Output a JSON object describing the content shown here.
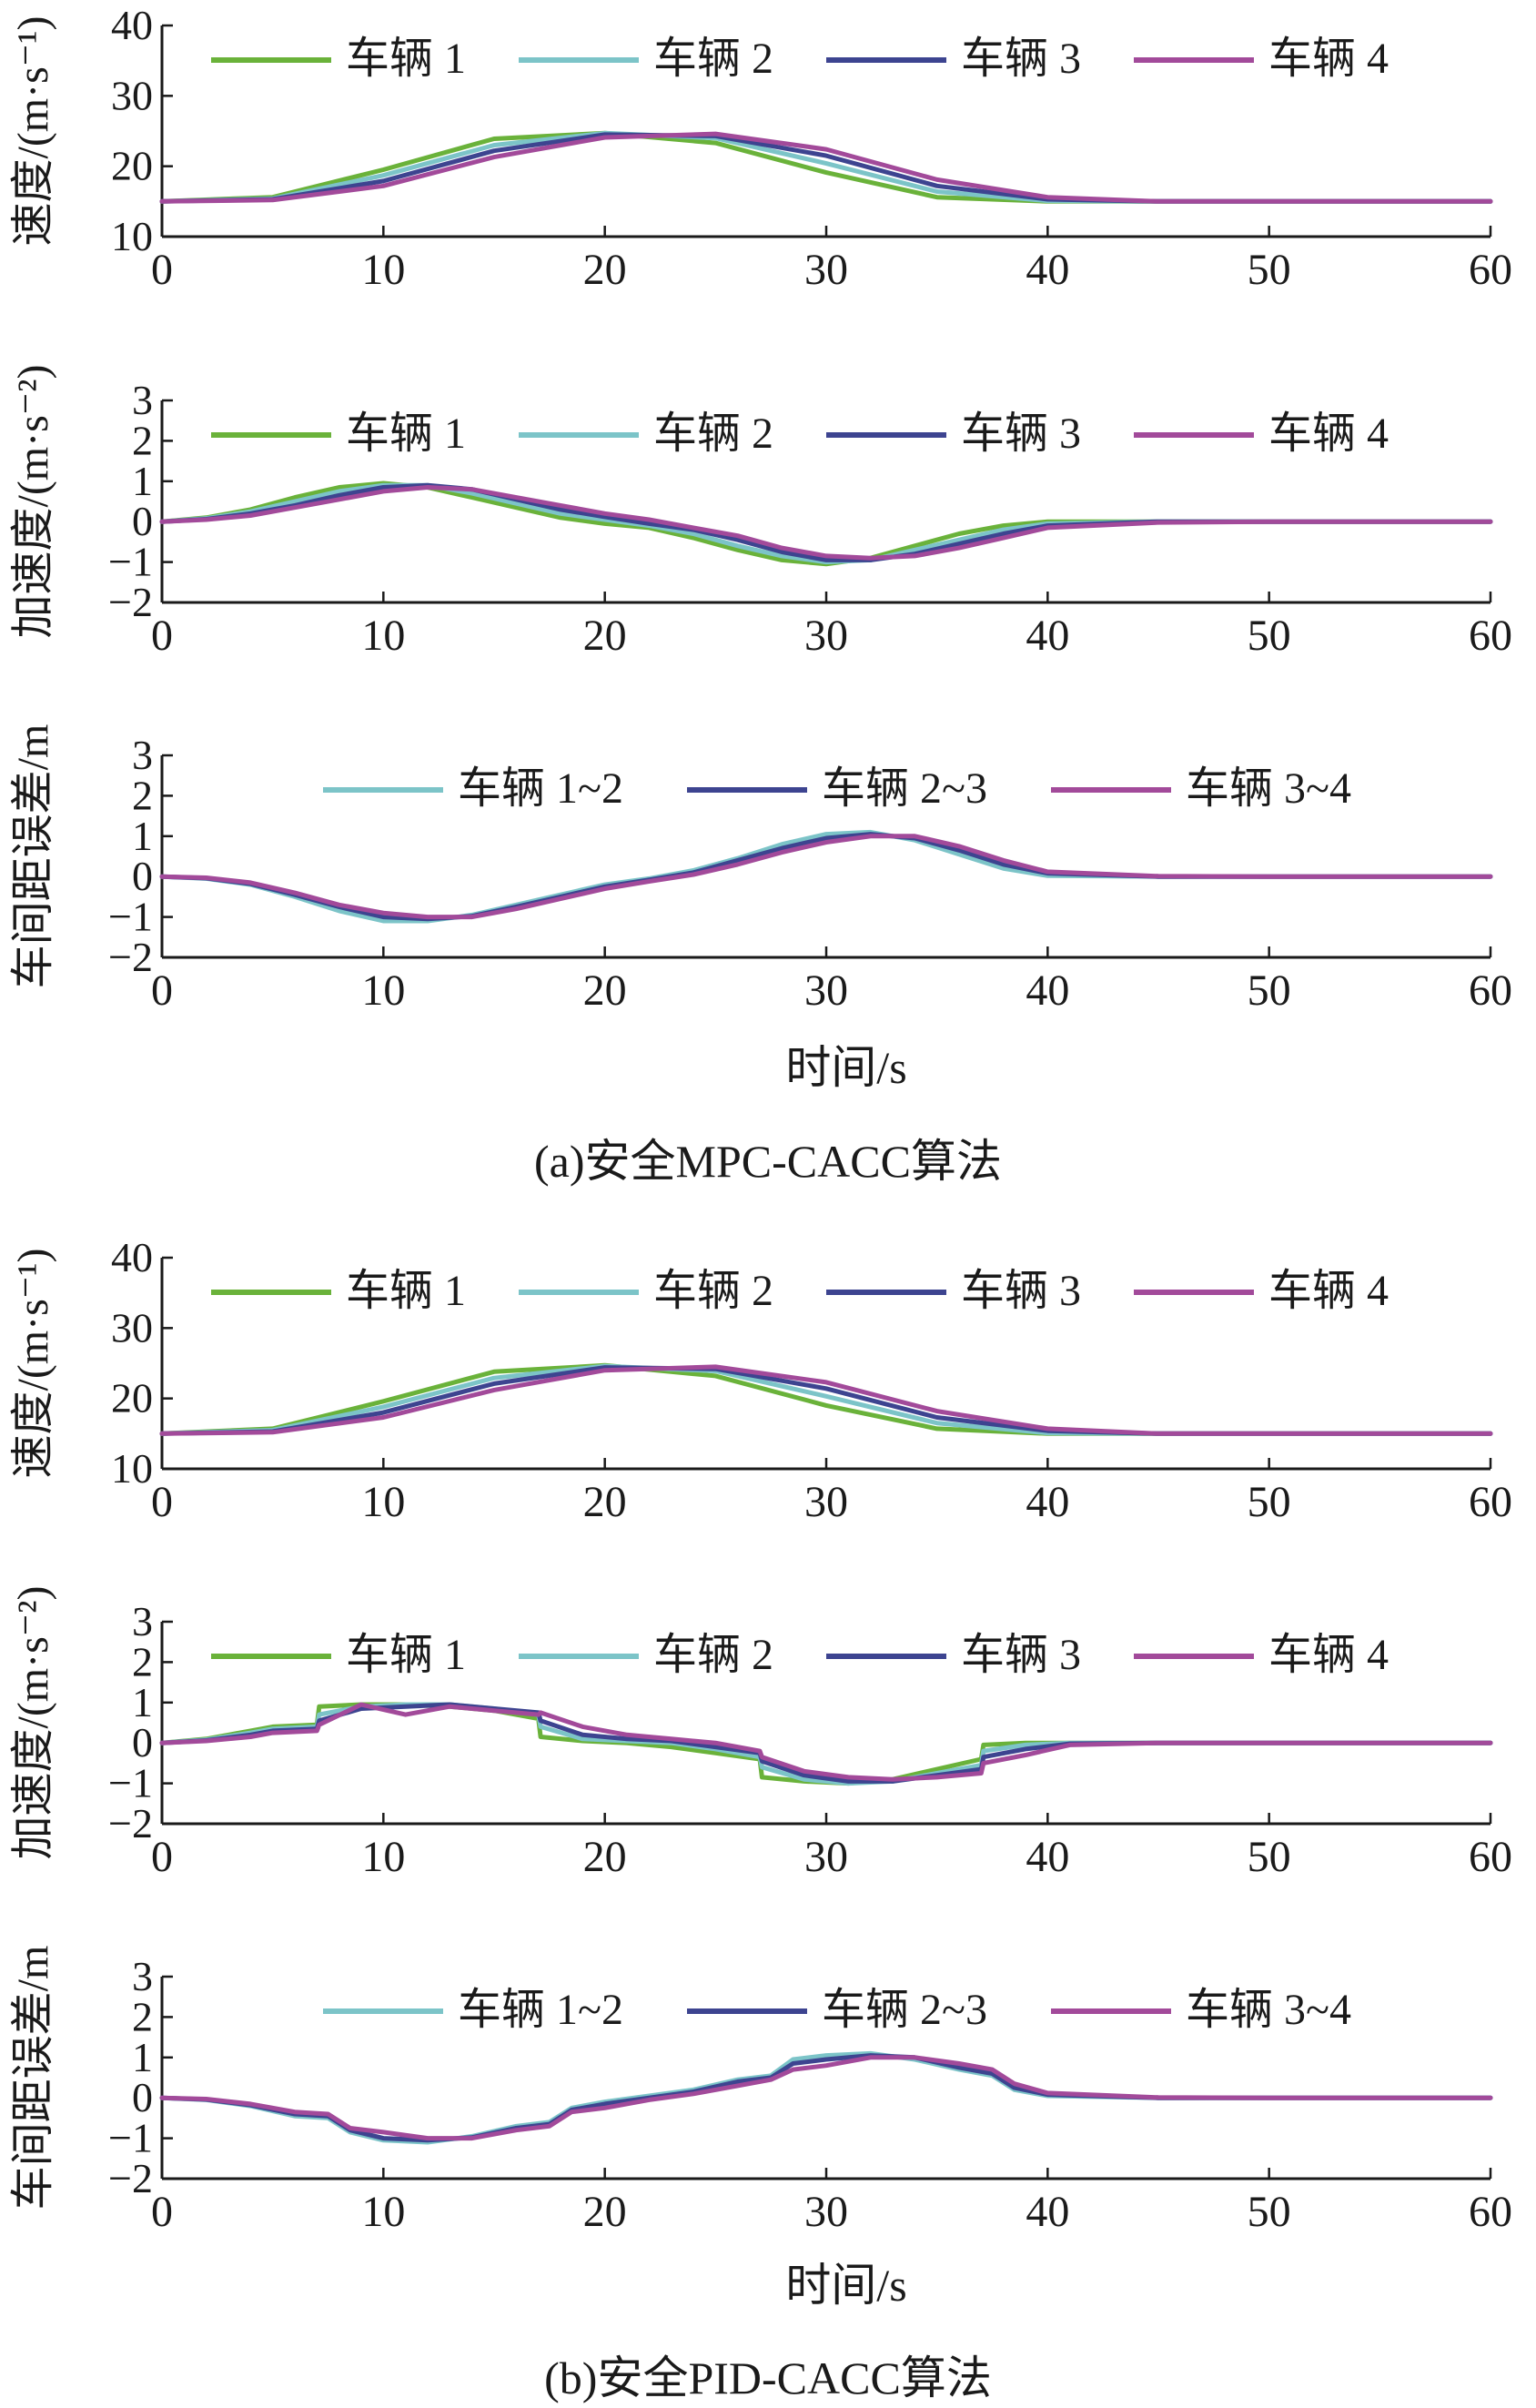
{
  "figure": {
    "panel_a_caption": "(a)安全MPC-CACC算法",
    "panel_b_caption": "(b)安全PID-CACC算法"
  },
  "colors": {
    "vehicle1": "#6ab23a",
    "vehicle2": "#7cc4c8",
    "vehicle3": "#3d4490",
    "vehicle4": "#a24a9a",
    "axis": "#1a1a1a"
  },
  "chart_data": [
    {
      "type": "line",
      "panel": "a",
      "title": "",
      "xlabel": "",
      "ylabel": "速度/(m·s⁻¹)",
      "xlim": [
        0,
        60
      ],
      "ylim": [
        10,
        40
      ],
      "xticks": [
        0,
        10,
        20,
        30,
        40,
        50,
        60
      ],
      "yticks": [
        10,
        20,
        30,
        40
      ],
      "grid": false,
      "legend": "top",
      "x": [
        0,
        5,
        10,
        15,
        20,
        25,
        30,
        35,
        40,
        45,
        50,
        55,
        60
      ],
      "series": [
        {
          "name": "车辆 1",
          "values": [
            15,
            15.6,
            19.5,
            23.9,
            24.7,
            23.3,
            19.1,
            15.6,
            15,
            15,
            15,
            15,
            15
          ]
        },
        {
          "name": "车辆 2",
          "values": [
            15,
            15.4,
            18.7,
            23.0,
            24.7,
            24.0,
            20.4,
            16.4,
            15.1,
            15,
            15,
            15,
            15
          ]
        },
        {
          "name": "车辆 3",
          "values": [
            15,
            15.3,
            17.9,
            22.2,
            24.5,
            24.3,
            21.5,
            17.2,
            15.3,
            15,
            15,
            15,
            15
          ]
        },
        {
          "name": "车辆 4",
          "values": [
            15,
            15.2,
            17.2,
            21.3,
            24.1,
            24.6,
            22.4,
            18.1,
            15.6,
            15,
            15,
            15,
            15
          ]
        }
      ]
    },
    {
      "type": "line",
      "panel": "a",
      "title": "",
      "xlabel": "",
      "ylabel": "加速度/(m·s⁻²)",
      "xlim": [
        0,
        60
      ],
      "ylim": [
        -2,
        3
      ],
      "xticks": [
        0,
        10,
        20,
        30,
        40,
        50,
        60
      ],
      "yticks": [
        -2,
        -1,
        0,
        1,
        2,
        3
      ],
      "grid": false,
      "legend": "top",
      "x": [
        0,
        2,
        4,
        6,
        8,
        10,
        12,
        14,
        16,
        18,
        20,
        22,
        24,
        26,
        28,
        30,
        32,
        34,
        36,
        38,
        40,
        45,
        50,
        55,
        60
      ],
      "series": [
        {
          "name": "车辆 1",
          "values": [
            0,
            0.1,
            0.3,
            0.6,
            0.85,
            0.95,
            0.85,
            0.6,
            0.35,
            0.1,
            -0.05,
            -0.15,
            -0.4,
            -0.7,
            -0.95,
            -1.05,
            -0.9,
            -0.6,
            -0.3,
            -0.1,
            0,
            0,
            0,
            0,
            0
          ]
        },
        {
          "name": "车辆 2",
          "values": [
            0,
            0.08,
            0.25,
            0.5,
            0.75,
            0.9,
            0.9,
            0.7,
            0.45,
            0.2,
            0.05,
            -0.1,
            -0.3,
            -0.6,
            -0.85,
            -1.0,
            -0.95,
            -0.7,
            -0.45,
            -0.2,
            -0.05,
            0,
            0,
            0,
            0
          ]
        },
        {
          "name": "车辆 3",
          "values": [
            0,
            0.06,
            0.2,
            0.4,
            0.65,
            0.85,
            0.9,
            0.8,
            0.55,
            0.3,
            0.12,
            -0.05,
            -0.2,
            -0.45,
            -0.75,
            -0.95,
            -0.95,
            -0.8,
            -0.55,
            -0.3,
            -0.1,
            0,
            0,
            0,
            0
          ]
        },
        {
          "name": "车辆 4",
          "values": [
            0,
            0.05,
            0.15,
            0.35,
            0.55,
            0.75,
            0.85,
            0.8,
            0.6,
            0.4,
            0.2,
            0.05,
            -0.15,
            -0.35,
            -0.65,
            -0.85,
            -0.9,
            -0.85,
            -0.65,
            -0.4,
            -0.15,
            -0.02,
            0,
            0,
            0
          ]
        }
      ]
    },
    {
      "type": "line",
      "panel": "a",
      "title": "",
      "xlabel": "时间/s",
      "ylabel": "车间距误差/m",
      "xlim": [
        0,
        60
      ],
      "ylim": [
        -2,
        3
      ],
      "xticks": [
        0,
        10,
        20,
        30,
        40,
        50,
        60
      ],
      "yticks": [
        -2,
        -1,
        0,
        1,
        2,
        3
      ],
      "grid": false,
      "legend": "top",
      "x": [
        0,
        2,
        4,
        6,
        8,
        10,
        12,
        14,
        16,
        18,
        20,
        22,
        24,
        26,
        28,
        30,
        32,
        34,
        36,
        38,
        40,
        45,
        50,
        55,
        60
      ],
      "series": [
        {
          "name": "车辆 1~2",
          "values": [
            0,
            -0.05,
            -0.2,
            -0.5,
            -0.85,
            -1.1,
            -1.1,
            -0.95,
            -0.7,
            -0.45,
            -0.2,
            -0.05,
            0.15,
            0.45,
            0.8,
            1.05,
            1.1,
            0.9,
            0.55,
            0.2,
            0.02,
            0,
            0,
            0,
            0
          ]
        },
        {
          "name": "车辆 2~3",
          "values": [
            0,
            -0.04,
            -0.18,
            -0.45,
            -0.75,
            -1.0,
            -1.05,
            -0.98,
            -0.75,
            -0.5,
            -0.25,
            -0.08,
            0.1,
            0.4,
            0.7,
            0.95,
            1.05,
            0.95,
            0.65,
            0.3,
            0.08,
            0,
            0,
            0,
            0
          ]
        },
        {
          "name": "车辆 3~4",
          "values": [
            0,
            -0.03,
            -0.15,
            -0.4,
            -0.7,
            -0.9,
            -1.0,
            -1.0,
            -0.8,
            -0.55,
            -0.3,
            -0.12,
            0.05,
            0.3,
            0.6,
            0.85,
            1.0,
            1.0,
            0.75,
            0.4,
            0.12,
            0.01,
            0,
            0,
            0
          ]
        }
      ]
    },
    {
      "type": "line",
      "panel": "b",
      "title": "",
      "xlabel": "",
      "ylabel": "速度/(m·s⁻¹)",
      "xlim": [
        0,
        60
      ],
      "ylim": [
        10,
        40
      ],
      "xticks": [
        0,
        10,
        20,
        30,
        40,
        50,
        60
      ],
      "yticks": [
        10,
        20,
        30,
        40
      ],
      "grid": false,
      "legend": "top",
      "x": [
        0,
        5,
        10,
        15,
        20,
        25,
        30,
        35,
        40,
        45,
        50,
        55,
        60
      ],
      "series": [
        {
          "name": "车辆 1",
          "values": [
            15,
            15.7,
            19.6,
            23.8,
            24.7,
            23.2,
            19.0,
            15.7,
            15,
            15,
            15,
            15,
            15
          ]
        },
        {
          "name": "车辆 2",
          "values": [
            15,
            15.5,
            18.8,
            22.9,
            24.6,
            23.9,
            20.3,
            16.5,
            15.1,
            15,
            15,
            15,
            15
          ]
        },
        {
          "name": "车辆 3",
          "values": [
            15,
            15.3,
            18.0,
            22.1,
            24.4,
            24.2,
            21.4,
            17.3,
            15.4,
            15,
            15,
            15,
            15
          ]
        },
        {
          "name": "车辆 4",
          "values": [
            15,
            15.2,
            17.3,
            21.2,
            24.0,
            24.5,
            22.3,
            18.2,
            15.7,
            15,
            15,
            15,
            15
          ]
        }
      ]
    },
    {
      "type": "line",
      "panel": "b",
      "title": "",
      "xlabel": "",
      "ylabel": "加速度/(m·s⁻²)",
      "xlim": [
        0,
        60
      ],
      "ylim": [
        -2,
        3
      ],
      "xticks": [
        0,
        10,
        20,
        30,
        40,
        50,
        60
      ],
      "yticks": [
        -2,
        -1,
        0,
        1,
        2,
        3
      ],
      "grid": false,
      "legend": "top",
      "x": [
        0,
        2,
        4,
        5,
        7,
        7.1,
        9,
        11,
        13,
        15,
        17,
        17.1,
        19,
        21,
        23,
        25,
        27,
        27.1,
        29,
        31,
        33,
        35,
        37,
        37.1,
        39,
        41,
        45,
        50,
        55,
        60
      ],
      "series": [
        {
          "name": "车辆 1",
          "values": [
            0,
            0.1,
            0.3,
            0.4,
            0.45,
            0.9,
            0.95,
            0.95,
            0.9,
            0.8,
            0.6,
            0.15,
            0.05,
            0,
            -0.1,
            -0.25,
            -0.4,
            -0.85,
            -0.95,
            -1.0,
            -0.9,
            -0.65,
            -0.4,
            -0.05,
            0,
            0,
            0,
            0,
            0,
            0
          ]
        },
        {
          "name": "车辆 2",
          "values": [
            0,
            0.08,
            0.25,
            0.35,
            0.4,
            0.7,
            0.9,
            0.95,
            0.95,
            0.85,
            0.7,
            0.4,
            0.1,
            0.05,
            0,
            -0.15,
            -0.35,
            -0.6,
            -0.9,
            -1.0,
            -0.95,
            -0.75,
            -0.55,
            -0.2,
            -0.05,
            0,
            0,
            0,
            0,
            0
          ]
        },
        {
          "name": "车辆 3",
          "values": [
            0,
            0.06,
            0.2,
            0.3,
            0.35,
            0.55,
            0.85,
            0.9,
            0.95,
            0.85,
            0.75,
            0.55,
            0.2,
            0.1,
            0.05,
            -0.1,
            -0.25,
            -0.45,
            -0.8,
            -0.95,
            -0.95,
            -0.8,
            -0.65,
            -0.35,
            -0.15,
            -0.02,
            0,
            0,
            0,
            0
          ]
        },
        {
          "name": "车辆 4",
          "values": [
            0,
            0.05,
            0.15,
            0.25,
            0.3,
            0.45,
            0.95,
            0.7,
            0.9,
            0.8,
            0.7,
            0.75,
            0.4,
            0.2,
            0.1,
            0.0,
            -0.2,
            -0.35,
            -0.7,
            -0.85,
            -0.9,
            -0.85,
            -0.75,
            -0.5,
            -0.3,
            -0.05,
            0,
            0,
            0,
            0
          ]
        }
      ]
    },
    {
      "type": "line",
      "panel": "b",
      "title": "",
      "xlabel": "时间/s",
      "ylabel": "车间距误差/m",
      "xlim": [
        0,
        60
      ],
      "ylim": [
        -2,
        3
      ],
      "xticks": [
        0,
        10,
        20,
        30,
        40,
        50,
        60
      ],
      "yticks": [
        -2,
        -1,
        0,
        1,
        2,
        3
      ],
      "grid": false,
      "legend": "top",
      "x": [
        0,
        2,
        4,
        6,
        7.5,
        8.5,
        10,
        12,
        14,
        16,
        17.5,
        18.5,
        20,
        22,
        24,
        26,
        27.5,
        28.5,
        30,
        32,
        34,
        36,
        37.5,
        38.5,
        40,
        45,
        50,
        55,
        60
      ],
      "series": [
        {
          "name": "车辆 1~2",
          "values": [
            0,
            -0.05,
            -0.2,
            -0.45,
            -0.5,
            -0.85,
            -1.05,
            -1.1,
            -0.95,
            -0.7,
            -0.6,
            -0.25,
            -0.1,
            0.05,
            0.2,
            0.45,
            0.55,
            0.95,
            1.05,
            1.1,
            0.95,
            0.7,
            0.55,
            0.2,
            0.05,
            0,
            0,
            0,
            0
          ]
        },
        {
          "name": "车辆 2~3",
          "values": [
            0,
            -0.04,
            -0.18,
            -0.4,
            -0.45,
            -0.8,
            -1.0,
            -1.05,
            -0.98,
            -0.75,
            -0.65,
            -0.3,
            -0.15,
            0.0,
            0.15,
            0.4,
            0.5,
            0.85,
            0.95,
            1.05,
            1.0,
            0.75,
            0.6,
            0.25,
            0.08,
            0,
            0,
            0,
            0
          ]
        },
        {
          "name": "车辆 3~4",
          "values": [
            0,
            -0.03,
            -0.15,
            -0.35,
            -0.4,
            -0.75,
            -0.85,
            -1.0,
            -1.0,
            -0.8,
            -0.7,
            -0.35,
            -0.25,
            -0.05,
            0.1,
            0.3,
            0.45,
            0.7,
            0.8,
            1.0,
            1.0,
            0.85,
            0.7,
            0.35,
            0.12,
            0.01,
            0,
            0,
            0
          ]
        }
      ]
    }
  ]
}
